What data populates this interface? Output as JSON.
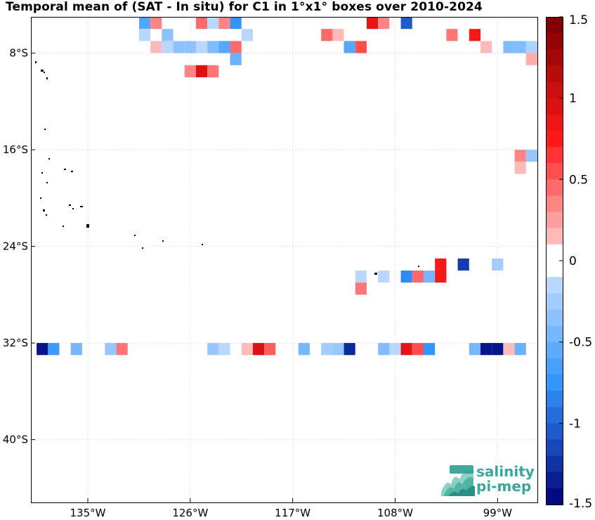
{
  "title": "Temporal mean of (SAT - In situ) for C1 in 1°x1° boxes over 2010-2024",
  "colors": {
    "grid": "#c8c8c8",
    "frame": "#000000",
    "land": "#000000"
  },
  "map": {
    "lon_ticks": [
      {
        "lon": -135,
        "label": "135°W"
      },
      {
        "lon": -126,
        "label": "126°W"
      },
      {
        "lon": -117,
        "label": "117°W"
      },
      {
        "lon": -108,
        "label": "108°W"
      },
      {
        "lon": -99,
        "label": "99°W"
      }
    ],
    "lat_ticks": [
      {
        "lat": -8,
        "label": "8°S"
      },
      {
        "lat": -16,
        "label": "16°S"
      },
      {
        "lat": -24,
        "label": "24°S"
      },
      {
        "lat": -32,
        "label": "32°S"
      },
      {
        "lat": -40,
        "label": "40°S"
      }
    ],
    "lon_range": [
      -140,
      -95.5
    ],
    "lat_range": [
      -45.2,
      -5
    ]
  },
  "colorbar": {
    "range": [
      -1.5,
      1.5
    ],
    "ticks": [
      {
        "value": 1.5,
        "label": "1.5"
      },
      {
        "value": 1,
        "label": "1"
      },
      {
        "value": 0.5,
        "label": "0.5"
      },
      {
        "value": 0,
        "label": "0"
      },
      {
        "value": -0.5,
        "label": "-0.5"
      },
      {
        "value": -1,
        "label": "-1"
      },
      {
        "value": -1.5,
        "label": "-1.5"
      }
    ]
  },
  "logo": {
    "line1": "salinity",
    "line2": "pi-mep"
  },
  "chart_data": {
    "type": "heatmap",
    "cell_size_deg": 1,
    "cells": [
      {
        "lon": -130,
        "lat": -5.5,
        "v": -0.6
      },
      {
        "lon": -129,
        "lat": -5.5,
        "v": 0.35
      },
      {
        "lon": -125,
        "lat": -5.5,
        "v": 0.45
      },
      {
        "lon": -124,
        "lat": -5.5,
        "v": -0.15
      },
      {
        "lon": -123,
        "lat": -5.5,
        "v": 0.35
      },
      {
        "lon": -122,
        "lat": -5.5,
        "v": -0.75
      },
      {
        "lon": -110,
        "lat": -5.5,
        "v": 0.9
      },
      {
        "lon": -109,
        "lat": -5.5,
        "v": 0.35
      },
      {
        "lon": -107,
        "lat": -5.5,
        "v": -1.05
      },
      {
        "lon": -130,
        "lat": -6.5,
        "v": -0.15
      },
      {
        "lon": -128,
        "lat": -6.5,
        "v": -0.35
      },
      {
        "lon": -121,
        "lat": -6.5,
        "v": -0.15
      },
      {
        "lon": -114,
        "lat": -6.5,
        "v": 0.45
      },
      {
        "lon": -113,
        "lat": -6.5,
        "v": 0.15
      },
      {
        "lon": -103,
        "lat": -6.5,
        "v": 0.4
      },
      {
        "lon": -101,
        "lat": -6.5,
        "v": 0.8
      },
      {
        "lon": -129,
        "lat": -7.5,
        "v": 0.15
      },
      {
        "lon": -128,
        "lat": -7.5,
        "v": -0.15
      },
      {
        "lon": -127,
        "lat": -7.5,
        "v": -0.35
      },
      {
        "lon": -126,
        "lat": -7.5,
        "v": -0.35
      },
      {
        "lon": -125,
        "lat": -7.5,
        "v": -0.15
      },
      {
        "lon": -124,
        "lat": -7.5,
        "v": -0.4
      },
      {
        "lon": -123,
        "lat": -7.5,
        "v": -0.6
      },
      {
        "lon": -122,
        "lat": -7.5,
        "v": 0.45
      },
      {
        "lon": -112,
        "lat": -7.5,
        "v": -0.6
      },
      {
        "lon": -111,
        "lat": -7.5,
        "v": 0.55
      },
      {
        "lon": -100,
        "lat": -7.5,
        "v": 0.15
      },
      {
        "lon": -98,
        "lat": -7.5,
        "v": -0.4
      },
      {
        "lon": -97,
        "lat": -7.5,
        "v": -0.4
      },
      {
        "lon": -96,
        "lat": -7.5,
        "v": -0.2
      },
      {
        "lon": -122,
        "lat": -8.5,
        "v": -0.5
      },
      {
        "lon": -96,
        "lat": -8.5,
        "v": 0.2
      },
      {
        "lon": -126,
        "lat": -9.5,
        "v": 0.35
      },
      {
        "lon": -125,
        "lat": -9.5,
        "v": 0.95
      },
      {
        "lon": -124,
        "lat": -9.5,
        "v": 0.4
      },
      {
        "lon": -97,
        "lat": -16.5,
        "v": 0.35
      },
      {
        "lon": -96,
        "lat": -16.5,
        "v": -0.3
      },
      {
        "lon": -97,
        "lat": -17.5,
        "v": 0.15
      },
      {
        "lon": -104,
        "lat": -25.5,
        "v": 0.8
      },
      {
        "lon": -102,
        "lat": -25.5,
        "v": -1.2
      },
      {
        "lon": -99,
        "lat": -25.5,
        "v": -0.25
      },
      {
        "lon": -111,
        "lat": -26.5,
        "v": -0.15
      },
      {
        "lon": -109,
        "lat": -26.5,
        "v": -0.15
      },
      {
        "lon": -107,
        "lat": -26.5,
        "v": -0.8
      },
      {
        "lon": -106,
        "lat": -26.5,
        "v": 0.45
      },
      {
        "lon": -105,
        "lat": -26.5,
        "v": -0.45
      },
      {
        "lon": -104,
        "lat": -26.5,
        "v": 0.8
      },
      {
        "lon": -111,
        "lat": -27.5,
        "v": 0.4
      },
      {
        "lon": -139,
        "lat": -32.5,
        "v": -1.4
      },
      {
        "lon": -138,
        "lat": -32.5,
        "v": -0.7
      },
      {
        "lon": -136,
        "lat": -32.5,
        "v": -0.45
      },
      {
        "lon": -133,
        "lat": -32.5,
        "v": -0.3
      },
      {
        "lon": -132,
        "lat": -32.5,
        "v": 0.4
      },
      {
        "lon": -124,
        "lat": -32.5,
        "v": -0.3
      },
      {
        "lon": -123,
        "lat": -32.5,
        "v": -0.15
      },
      {
        "lon": -121,
        "lat": -32.5,
        "v": 0.15
      },
      {
        "lon": -120,
        "lat": -32.5,
        "v": 0.95
      },
      {
        "lon": -119,
        "lat": -32.5,
        "v": 0.5
      },
      {
        "lon": -116,
        "lat": -32.5,
        "v": -0.45
      },
      {
        "lon": -114,
        "lat": -32.5,
        "v": -0.25
      },
      {
        "lon": -113,
        "lat": -32.5,
        "v": -0.3
      },
      {
        "lon": -112,
        "lat": -32.5,
        "v": -1.3
      },
      {
        "lon": -109,
        "lat": -32.5,
        "v": -0.4
      },
      {
        "lon": -108,
        "lat": -32.5,
        "v": -0.15
      },
      {
        "lon": -107,
        "lat": -32.5,
        "v": 0.9
      },
      {
        "lon": -106,
        "lat": -32.5,
        "v": 0.55
      },
      {
        "lon": -105,
        "lat": -32.5,
        "v": -0.75
      },
      {
        "lon": -101,
        "lat": -32.5,
        "v": -0.45
      },
      {
        "lon": -100,
        "lat": -32.5,
        "v": -1.4
      },
      {
        "lon": -99,
        "lat": -32.5,
        "v": -1.4
      },
      {
        "lon": -98,
        "lat": -32.5,
        "v": 0.15
      },
      {
        "lon": -97,
        "lat": -32.5,
        "v": -0.5
      }
    ]
  }
}
